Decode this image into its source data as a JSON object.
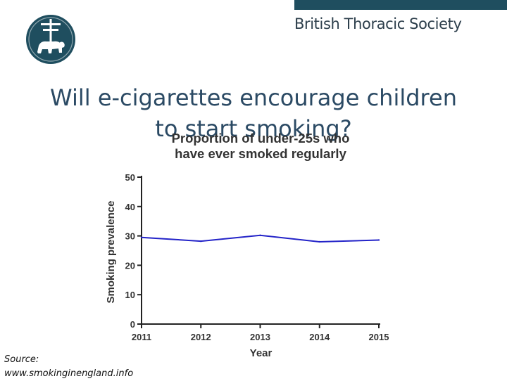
{
  "header": {
    "brand": "British Thoracic Society",
    "accent_color": "#1f4e5f",
    "logo_icon": "bts-crest-icon"
  },
  "slide": {
    "title_line1": "Will e-cigarettes encourage children",
    "title_line2": "to start smoking?"
  },
  "chart_data": {
    "type": "line",
    "title_line1": "Proportion of under-25s who",
    "title_line2": "have ever smoked regularly",
    "xlabel": "Year",
    "ylabel": "Smoking prevalence",
    "x": [
      "2011",
      "2012",
      "2013",
      "2014",
      "2015"
    ],
    "series": [
      {
        "values": [
          29.5,
          28.2,
          30.2,
          28.0,
          28.6
        ],
        "color": "#2323c8"
      }
    ],
    "ylim": [
      0,
      50
    ],
    "yticks": [
      0,
      10,
      20,
      30,
      40,
      50
    ],
    "grid": false
  },
  "footer": {
    "source_label": "Source:",
    "source_url": "www.smokinginengland.info"
  }
}
